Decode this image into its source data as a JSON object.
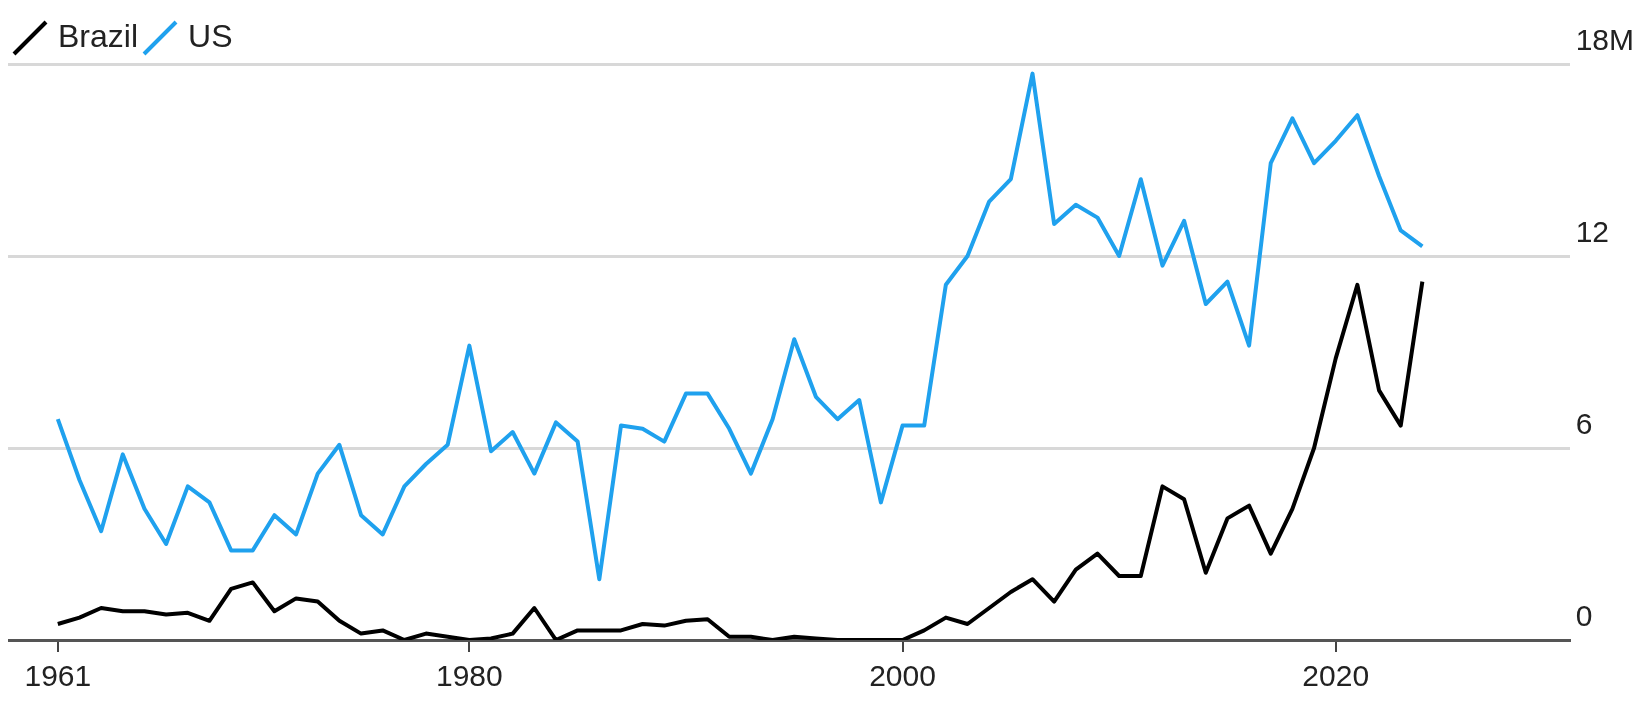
{
  "chart_data": {
    "type": "line",
    "x": [
      1961,
      1962,
      1963,
      1964,
      1965,
      1966,
      1967,
      1968,
      1969,
      1970,
      1971,
      1972,
      1973,
      1974,
      1975,
      1976,
      1977,
      1978,
      1979,
      1980,
      1981,
      1982,
      1983,
      1984,
      1985,
      1986,
      1987,
      1988,
      1989,
      1990,
      1991,
      1992,
      1993,
      1994,
      1995,
      1996,
      1997,
      1998,
      1999,
      2000,
      2001,
      2002,
      2003,
      2004,
      2005,
      2006,
      2007,
      2008,
      2009,
      2010,
      2011,
      2012,
      2013,
      2014,
      2015,
      2016,
      2017,
      2018,
      2019,
      2020,
      2021,
      2022,
      2023,
      2024
    ],
    "series": [
      {
        "name": "Brazil",
        "color": "#000000",
        "values": [
          0.5,
          0.7,
          1.0,
          0.9,
          0.9,
          0.8,
          0.85,
          0.6,
          1.6,
          1.8,
          0.9,
          1.3,
          1.2,
          0.6,
          0.2,
          0.3,
          0.0,
          0.2,
          0.1,
          0.0,
          0.05,
          0.2,
          1.0,
          0.0,
          0.3,
          0.3,
          0.3,
          0.5,
          0.45,
          0.6,
          0.65,
          0.1,
          0.1,
          0.0,
          0.1,
          0.05,
          0.0,
          0.0,
          0.0,
          0.0,
          0.3,
          0.7,
          0.5,
          1.0,
          1.5,
          1.9,
          1.2,
          2.2,
          2.7,
          2.0,
          2.0,
          4.8,
          4.4,
          2.1,
          3.8,
          4.2,
          2.7,
          4.1,
          6.0,
          8.8,
          11.1,
          7.8,
          6.7,
          11.2
        ]
      },
      {
        "name": "US",
        "color": "#1fa1ee",
        "values": [
          6.9,
          5.0,
          3.4,
          5.8,
          4.1,
          3.0,
          4.8,
          4.3,
          2.8,
          2.8,
          3.9,
          3.3,
          5.2,
          6.1,
          3.9,
          3.3,
          4.8,
          5.5,
          6.1,
          9.2,
          5.9,
          6.5,
          5.2,
          6.8,
          6.2,
          1.9,
          6.7,
          6.6,
          6.2,
          7.7,
          7.7,
          6.6,
          5.2,
          6.9,
          9.4,
          7.6,
          6.9,
          7.5,
          4.3,
          6.7,
          6.7,
          11.1,
          12.0,
          13.7,
          14.4,
          17.7,
          13.0,
          13.6,
          13.2,
          12.0,
          14.4,
          11.7,
          13.1,
          10.5,
          11.2,
          9.2,
          14.9,
          16.3,
          14.9,
          15.6,
          16.4,
          14.5,
          12.8,
          12.3
        ]
      }
    ],
    "xlim": [
      1958.7,
      2030.8
    ],
    "xticks": [
      1961,
      1980,
      2000,
      2020
    ],
    "ylim": [
      0,
      18
    ],
    "yticks": [
      0,
      6,
      12,
      {
        "value": 18,
        "label": "18M"
      }
    ],
    "grid": "y",
    "legend": "top left",
    "marker": "none",
    "line_style": "solid"
  }
}
